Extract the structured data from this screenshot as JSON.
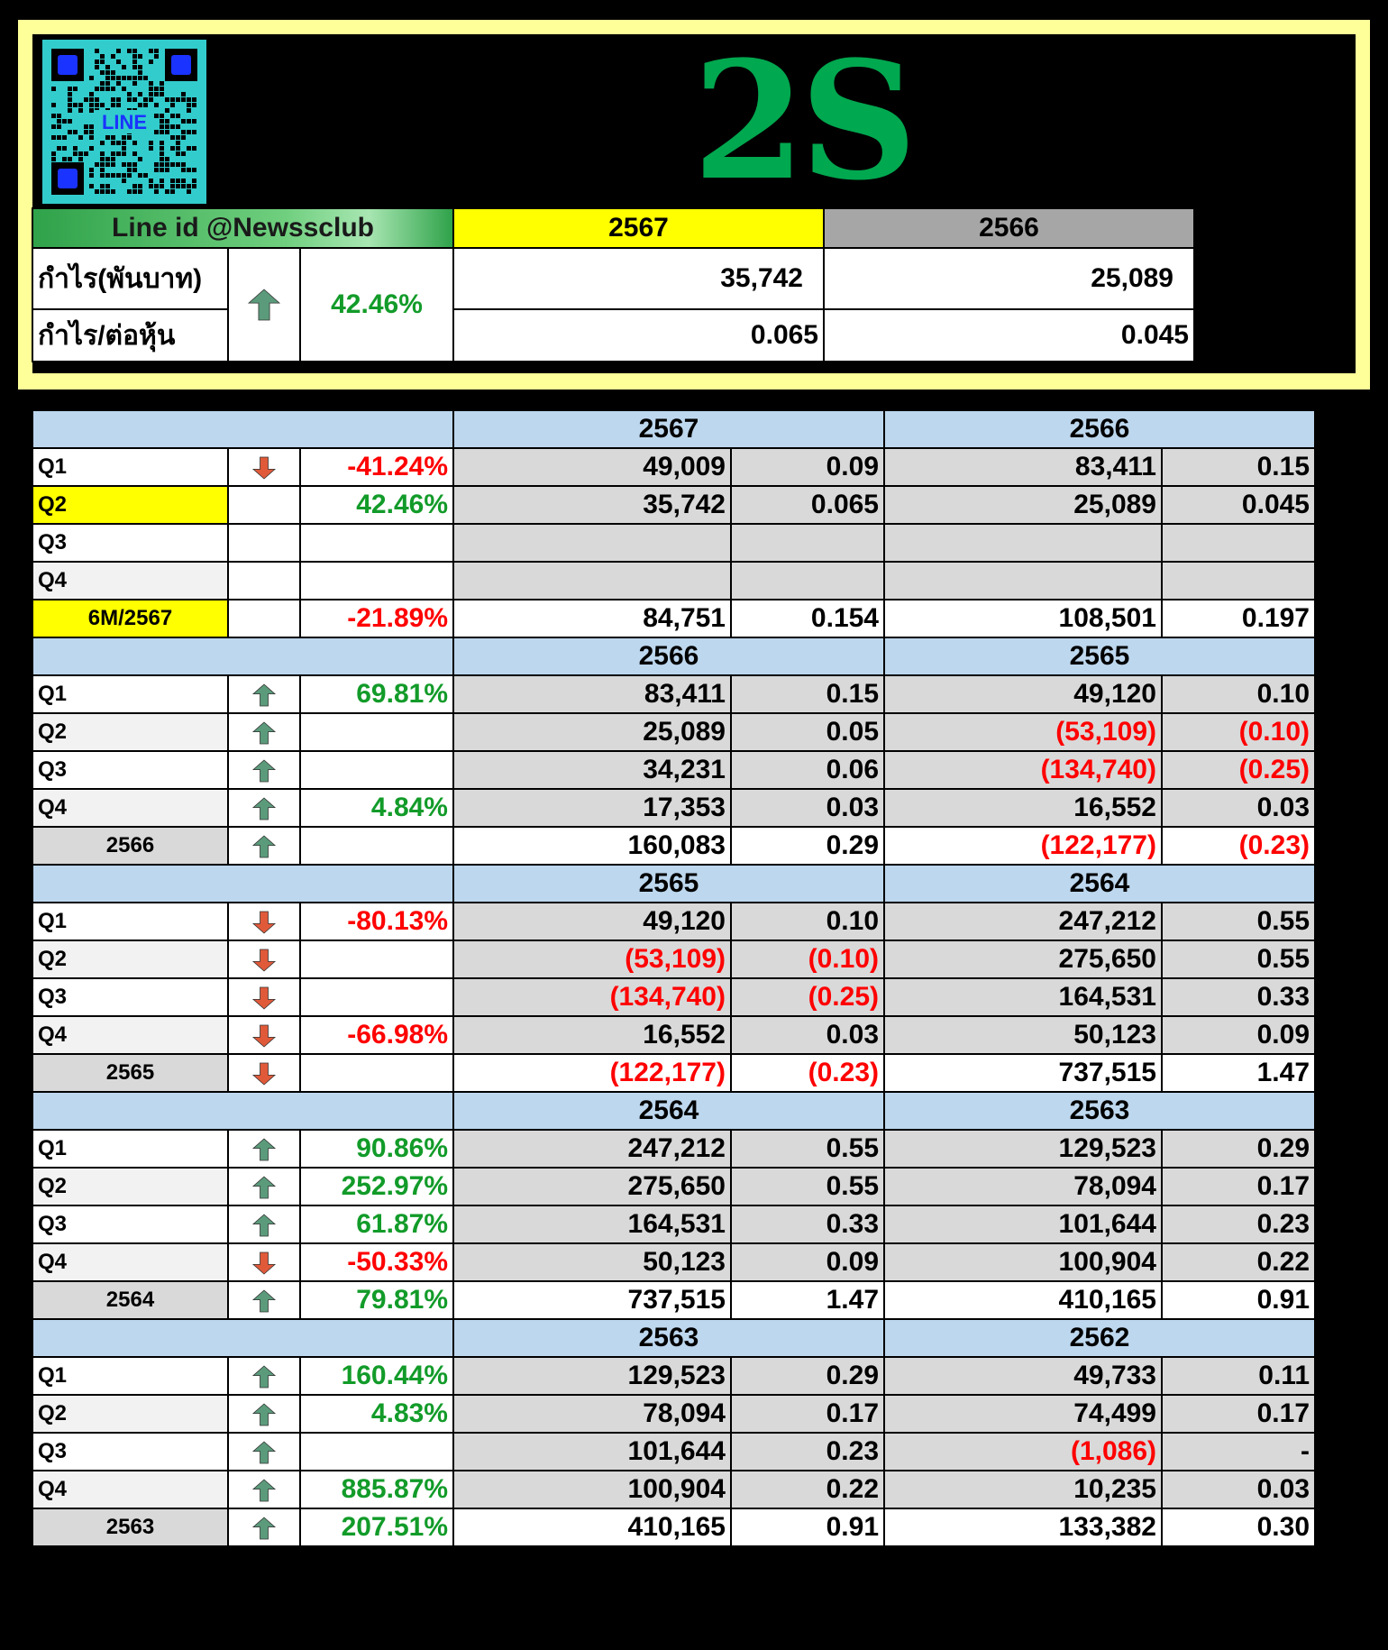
{
  "ticker": "2S",
  "qr": {
    "label": "LINE"
  },
  "summary": {
    "line_id": "Line id @Newssclub",
    "year_current": "2567",
    "year_prev": "2566",
    "profit_label": "กำไร(พันบาท)",
    "eps_label": "กำไร/ต่อหุ้น",
    "change_pct": "42.46%",
    "change_dir": "up",
    "profit_current": "35,742",
    "profit_prev": "25,089",
    "eps_current": "0.065",
    "eps_prev": "0.045"
  },
  "colors": {
    "up": "#5b9b7b",
    "down": "#e05a3a",
    "green_text": "#129b29",
    "red_text": "#ff0000",
    "highlight": "#ffff00",
    "section": "#bdd7ee"
  },
  "sections": [
    {
      "year_a": "2567",
      "year_b": "2566",
      "highlight_header": true,
      "rows": [
        {
          "q": "Q1",
          "dir": "down",
          "pct": "-41.24%",
          "a_profit": "49,009",
          "a_eps": "0.09",
          "b_profit": "83,411",
          "b_eps": "0.15"
        },
        {
          "q": "Q2",
          "dir": "",
          "pct": "42.46%",
          "a_profit": "35,742",
          "a_eps": "0.065",
          "b_profit": "25,089",
          "b_eps": "0.045",
          "highlight": true
        },
        {
          "q": "Q3",
          "dir": "",
          "pct": "",
          "a_profit": "",
          "a_eps": "",
          "b_profit": "",
          "b_eps": ""
        },
        {
          "q": "Q4",
          "dir": "",
          "pct": "",
          "a_profit": "",
          "a_eps": "",
          "b_profit": "",
          "b_eps": ""
        },
        {
          "q": "6M/2567",
          "dir": "",
          "pct": "-21.89%",
          "a_profit": "84,751",
          "a_eps": "0.154",
          "b_profit": "108,501",
          "b_eps": "0.197",
          "total": true,
          "highlight": true
        }
      ]
    },
    {
      "year_a": "2566",
      "year_b": "2565",
      "rows": [
        {
          "q": "Q1",
          "dir": "up",
          "pct": "69.81%",
          "a_profit": "83,411",
          "a_eps": "0.15",
          "b_profit": "49,120",
          "b_eps": "0.10"
        },
        {
          "q": "Q2",
          "dir": "up",
          "pct": "",
          "a_profit": "25,089",
          "a_eps": "0.05",
          "b_profit": "(53,109)",
          "b_eps": "(0.10)"
        },
        {
          "q": "Q3",
          "dir": "up",
          "pct": "",
          "a_profit": "34,231",
          "a_eps": "0.06",
          "b_profit": "(134,740)",
          "b_eps": "(0.25)"
        },
        {
          "q": "Q4",
          "dir": "up",
          "pct": "4.84%",
          "a_profit": "17,353",
          "a_eps": "0.03",
          "b_profit": "16,552",
          "b_eps": "0.03"
        },
        {
          "q": "2566",
          "dir": "up",
          "pct": "",
          "a_profit": "160,083",
          "a_eps": "0.29",
          "b_profit": "(122,177)",
          "b_eps": "(0.23)",
          "total": true
        }
      ]
    },
    {
      "year_a": "2565",
      "year_b": "2564",
      "rows": [
        {
          "q": "Q1",
          "dir": "down",
          "pct": "-80.13%",
          "a_profit": "49,120",
          "a_eps": "0.10",
          "b_profit": "247,212",
          "b_eps": "0.55"
        },
        {
          "q": "Q2",
          "dir": "down",
          "pct": "",
          "a_profit": "(53,109)",
          "a_eps": "(0.10)",
          "b_profit": "275,650",
          "b_eps": "0.55"
        },
        {
          "q": "Q3",
          "dir": "down",
          "pct": "",
          "a_profit": "(134,740)",
          "a_eps": "(0.25)",
          "b_profit": "164,531",
          "b_eps": "0.33"
        },
        {
          "q": "Q4",
          "dir": "down",
          "pct": "-66.98%",
          "a_profit": "16,552",
          "a_eps": "0.03",
          "b_profit": "50,123",
          "b_eps": "0.09"
        },
        {
          "q": "2565",
          "dir": "down",
          "pct": "",
          "a_profit": "(122,177)",
          "a_eps": "(0.23)",
          "b_profit": "737,515",
          "b_eps": "1.47",
          "total": true
        }
      ]
    },
    {
      "year_a": "2564",
      "year_b": "2563",
      "rows": [
        {
          "q": "Q1",
          "dir": "up",
          "pct": "90.86%",
          "a_profit": "247,212",
          "a_eps": "0.55",
          "b_profit": "129,523",
          "b_eps": "0.29"
        },
        {
          "q": "Q2",
          "dir": "up",
          "pct": "252.97%",
          "a_profit": "275,650",
          "a_eps": "0.55",
          "b_profit": "78,094",
          "b_eps": "0.17"
        },
        {
          "q": "Q3",
          "dir": "up",
          "pct": "61.87%",
          "a_profit": "164,531",
          "a_eps": "0.33",
          "b_profit": "101,644",
          "b_eps": "0.23"
        },
        {
          "q": "Q4",
          "dir": "down",
          "pct": "-50.33%",
          "a_profit": "50,123",
          "a_eps": "0.09",
          "b_profit": "100,904",
          "b_eps": "0.22"
        },
        {
          "q": "2564",
          "dir": "up",
          "pct": "79.81%",
          "a_profit": "737,515",
          "a_eps": "1.47",
          "b_profit": "410,165",
          "b_eps": "0.91",
          "total": true
        }
      ]
    },
    {
      "year_a": "2563",
      "year_b": "2562",
      "rows": [
        {
          "q": "Q1",
          "dir": "up",
          "pct": "160.44%",
          "a_profit": "129,523",
          "a_eps": "0.29",
          "b_profit": "49,733",
          "b_eps": "0.11"
        },
        {
          "q": "Q2",
          "dir": "up",
          "pct": "4.83%",
          "a_profit": "78,094",
          "a_eps": "0.17",
          "b_profit": "74,499",
          "b_eps": "0.17"
        },
        {
          "q": "Q3",
          "dir": "up",
          "pct": "",
          "a_profit": "101,644",
          "a_eps": "0.23",
          "b_profit": "(1,086)",
          "b_eps": "-"
        },
        {
          "q": "Q4",
          "dir": "up",
          "pct": "885.87%",
          "a_profit": "100,904",
          "a_eps": "0.22",
          "b_profit": "10,235",
          "b_eps": "0.03"
        },
        {
          "q": "2563",
          "dir": "up",
          "pct": "207.51%",
          "a_profit": "410,165",
          "a_eps": "0.91",
          "b_profit": "133,382",
          "b_eps": "0.30",
          "total": true
        }
      ]
    }
  ]
}
